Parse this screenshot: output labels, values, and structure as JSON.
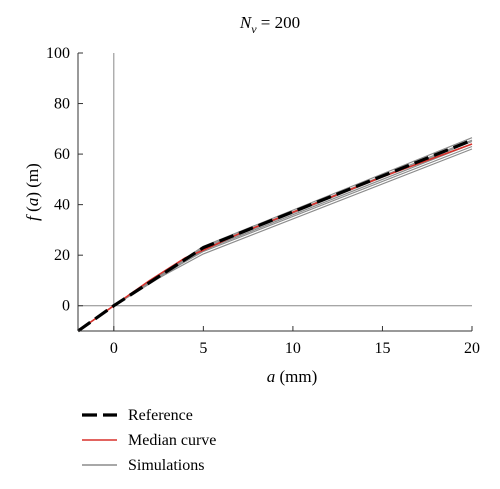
{
  "chart_data": {
    "type": "line",
    "title": "N_v = 200",
    "title_parts": {
      "symbol": "N",
      "subscript": "v",
      "rest": " = 200"
    },
    "xlabel": "a (mm)",
    "xlabel_parts": {
      "symbol": "a",
      "rest": " (mm)"
    },
    "ylabel": "f (a) (m)",
    "ylabel_parts": {
      "symbol": "f",
      "mid": " (",
      "symbol2": "a",
      "rest": ") (m)"
    },
    "xlim": [
      -2,
      20
    ],
    "ylim": [
      -10,
      100
    ],
    "xticks": [
      0,
      5,
      10,
      15,
      20
    ],
    "yticks": [
      0,
      20,
      40,
      60,
      80,
      100
    ],
    "reference_lines": {
      "x": 0,
      "y": 0
    },
    "grid": false,
    "legend_placement": "bottom-left, below plot",
    "series": [
      {
        "name": "Reference",
        "color": "#000000",
        "style": "dashed",
        "x": [
          -2,
          0,
          5,
          20
        ],
        "y": [
          -10,
          0,
          23,
          65.5
        ]
      },
      {
        "name": "Median curve",
        "color": "#d9312b",
        "style": "solid",
        "x": [
          -2,
          0,
          2,
          4,
          5,
          7,
          10,
          15,
          20
        ],
        "y": [
          -10,
          0,
          10,
          19,
          22,
          28.5,
          37,
          51,
          64
        ]
      },
      {
        "name": "Simulations",
        "color": "#8c8c8c",
        "style": "solid",
        "members": [
          {
            "x": [
              -2,
              0,
              5,
              20
            ],
            "y": [
              -10,
              0,
              23.5,
              66.5
            ]
          },
          {
            "x": [
              -2,
              0,
              5,
              20
            ],
            "y": [
              -10,
              0,
              23,
              65.5
            ]
          },
          {
            "x": [
              -2,
              0,
              2.5,
              5,
              20
            ],
            "y": [
              -10,
              0,
              11.5,
              22,
              64
            ]
          },
          {
            "x": [
              -2,
              0,
              2,
              5,
              20
            ],
            "y": [
              -10,
              0,
              9.5,
              21.5,
              63
            ]
          },
          {
            "x": [
              -2,
              0,
              2,
              5,
              20
            ],
            "y": [
              -10,
              0,
              9,
              20.5,
              62
            ]
          },
          {
            "x": [
              -2,
              0,
              3,
              5,
              20
            ],
            "y": [
              -10,
              0,
              13,
              22.5,
              65
            ]
          }
        ]
      }
    ]
  }
}
